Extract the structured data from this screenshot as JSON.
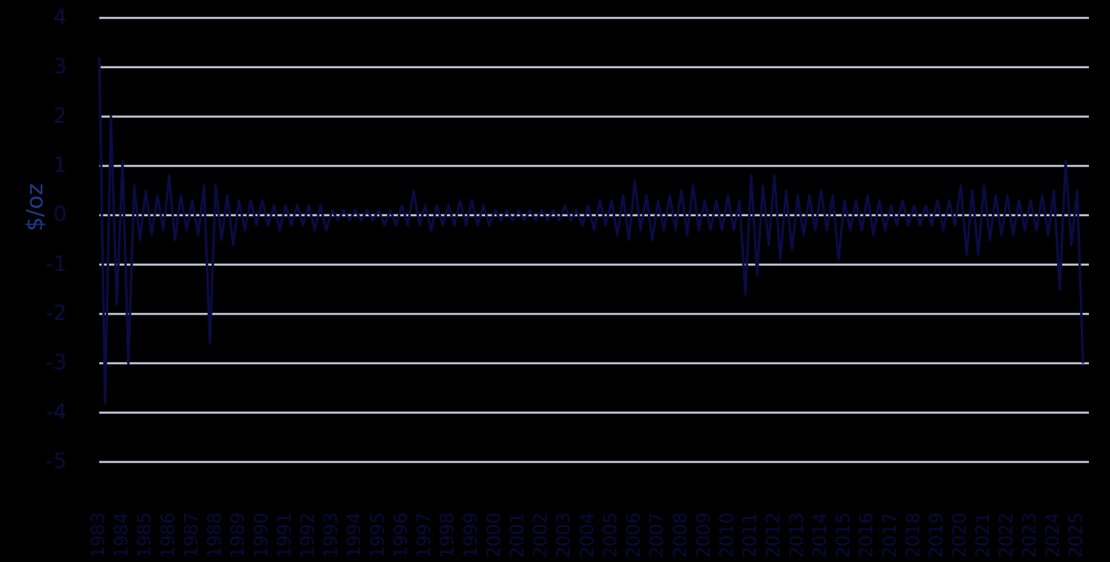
{
  "chart_data": {
    "type": "line",
    "y_label": "$/oz",
    "x": [
      1983,
      1983.25,
      1983.5,
      1983.75,
      1984,
      1984.25,
      1984.5,
      1984.75,
      1985,
      1985.25,
      1985.5,
      1985.75,
      1986,
      1986.25,
      1986.5,
      1986.75,
      1987,
      1987.25,
      1987.5,
      1987.75,
      1988,
      1988.25,
      1988.5,
      1988.75,
      1989,
      1989.25,
      1989.5,
      1989.75,
      1990,
      1990.25,
      1990.5,
      1990.75,
      1991,
      1991.25,
      1991.5,
      1991.75,
      1992,
      1992.25,
      1992.5,
      1992.75,
      1993,
      1993.25,
      1993.5,
      1993.75,
      1994,
      1994.25,
      1994.5,
      1994.75,
      1995,
      1995.25,
      1995.5,
      1995.75,
      1996,
      1996.25,
      1996.5,
      1996.75,
      1997,
      1997.25,
      1997.5,
      1997.75,
      1998,
      1998.25,
      1998.5,
      1998.75,
      1999,
      1999.25,
      1999.5,
      1999.75,
      2000,
      2000.25,
      2000.5,
      2000.75,
      2001,
      2001.25,
      2001.5,
      2001.75,
      2002,
      2002.25,
      2002.5,
      2002.75,
      2003,
      2003.25,
      2003.5,
      2003.75,
      2004,
      2004.25,
      2004.5,
      2004.75,
      2005,
      2005.25,
      2005.5,
      2005.75,
      2006,
      2006.25,
      2006.5,
      2006.75,
      2007,
      2007.25,
      2007.5,
      2007.75,
      2008,
      2008.25,
      2008.5,
      2008.75,
      2009,
      2009.25,
      2009.5,
      2009.75,
      2010,
      2010.25,
      2010.5,
      2010.75,
      2011,
      2011.25,
      2011.5,
      2011.75,
      2012,
      2012.25,
      2012.5,
      2012.75,
      2013,
      2013.25,
      2013.5,
      2013.75,
      2014,
      2014.25,
      2014.5,
      2014.75,
      2015,
      2015.25,
      2015.5,
      2015.75,
      2016,
      2016.25,
      2016.5,
      2016.75,
      2017,
      2017.25,
      2017.5,
      2017.75,
      2018,
      2018.25,
      2018.5,
      2018.75,
      2019,
      2019.25,
      2019.5,
      2019.75,
      2020,
      2020.25,
      2020.5,
      2020.75,
      2021,
      2021.25,
      2021.5,
      2021.75,
      2022,
      2022.25,
      2022.5,
      2022.75,
      2023,
      2023.25,
      2023.5,
      2023.75,
      2024,
      2024.25,
      2024.5,
      2024.75,
      2025,
      2025.25
    ],
    "series": [
      {
        "color": "#0b0b45",
        "values": [
          3.2,
          -3.8,
          2.0,
          -1.8,
          1.1,
          -3.0,
          0.6,
          -0.5,
          0.5,
          -0.4,
          0.4,
          -0.3,
          0.8,
          -0.5,
          0.4,
          -0.3,
          0.3,
          -0.4,
          0.6,
          -2.6,
          0.6,
          -0.5,
          0.4,
          -0.6,
          0.3,
          -0.3,
          0.3,
          -0.2,
          0.3,
          -0.2,
          0.2,
          -0.3,
          0.2,
          -0.2,
          0.2,
          -0.2,
          0.2,
          -0.3,
          0.2,
          -0.3,
          0.1,
          -0.1,
          0.1,
          -0.1,
          0.1,
          -0.1,
          0.1,
          -0.1,
          0.1,
          -0.2,
          0.1,
          -0.2,
          0.2,
          -0.2,
          0.5,
          -0.2,
          0.2,
          -0.3,
          0.2,
          -0.2,
          0.2,
          -0.2,
          0.3,
          -0.2,
          0.3,
          -0.2,
          0.2,
          -0.2,
          0.1,
          -0.1,
          0.1,
          -0.1,
          0.1,
          -0.1,
          0.1,
          -0.1,
          0.1,
          -0.1,
          0.1,
          -0.1,
          0.2,
          -0.1,
          0.1,
          -0.2,
          0.2,
          -0.3,
          0.3,
          -0.2,
          0.3,
          -0.4,
          0.4,
          -0.5,
          0.7,
          -0.3,
          0.4,
          -0.5,
          0.3,
          -0.3,
          0.4,
          -0.3,
          0.5,
          -0.4,
          0.6,
          -0.3,
          0.3,
          -0.3,
          0.3,
          -0.3,
          0.4,
          -0.3,
          0.3,
          -1.6,
          0.8,
          -1.2,
          0.6,
          -0.6,
          0.8,
          -0.9,
          0.5,
          -0.7,
          0.4,
          -0.4,
          0.4,
          -0.3,
          0.5,
          -0.3,
          0.4,
          -0.9,
          0.3,
          -0.3,
          0.3,
          -0.3,
          0.4,
          -0.4,
          0.3,
          -0.3,
          0.2,
          -0.2,
          0.3,
          -0.2,
          0.2,
          -0.2,
          0.2,
          -0.2,
          0.3,
          -0.3,
          0.3,
          -0.2,
          0.6,
          -0.8,
          0.5,
          -0.8,
          0.6,
          -0.5,
          0.4,
          -0.4,
          0.4,
          -0.4,
          0.3,
          -0.3,
          0.3,
          -0.3,
          0.4,
          -0.4,
          0.5,
          -1.5,
          1.1,
          -0.6,
          0.5,
          -3.0
        ]
      }
    ],
    "xlim": [
      1983,
      2025.5
    ],
    "xticks": [
      1983,
      1984,
      1985,
      1986,
      1987,
      1988,
      1989,
      1990,
      1991,
      1992,
      1993,
      1994,
      1995,
      1996,
      1997,
      1998,
      1999,
      2000,
      2001,
      2002,
      2003,
      2004,
      2005,
      2006,
      2007,
      2008,
      2009,
      2010,
      2011,
      2012,
      2013,
      2014,
      2015,
      2016,
      2017,
      2018,
      2019,
      2020,
      2021,
      2022,
      2023,
      2024,
      2025
    ],
    "ylim": [
      -5,
      4
    ],
    "yticks": [
      -5,
      -4,
      -3,
      -2,
      -1,
      0,
      1,
      2,
      3,
      4
    ],
    "grid": true
  }
}
